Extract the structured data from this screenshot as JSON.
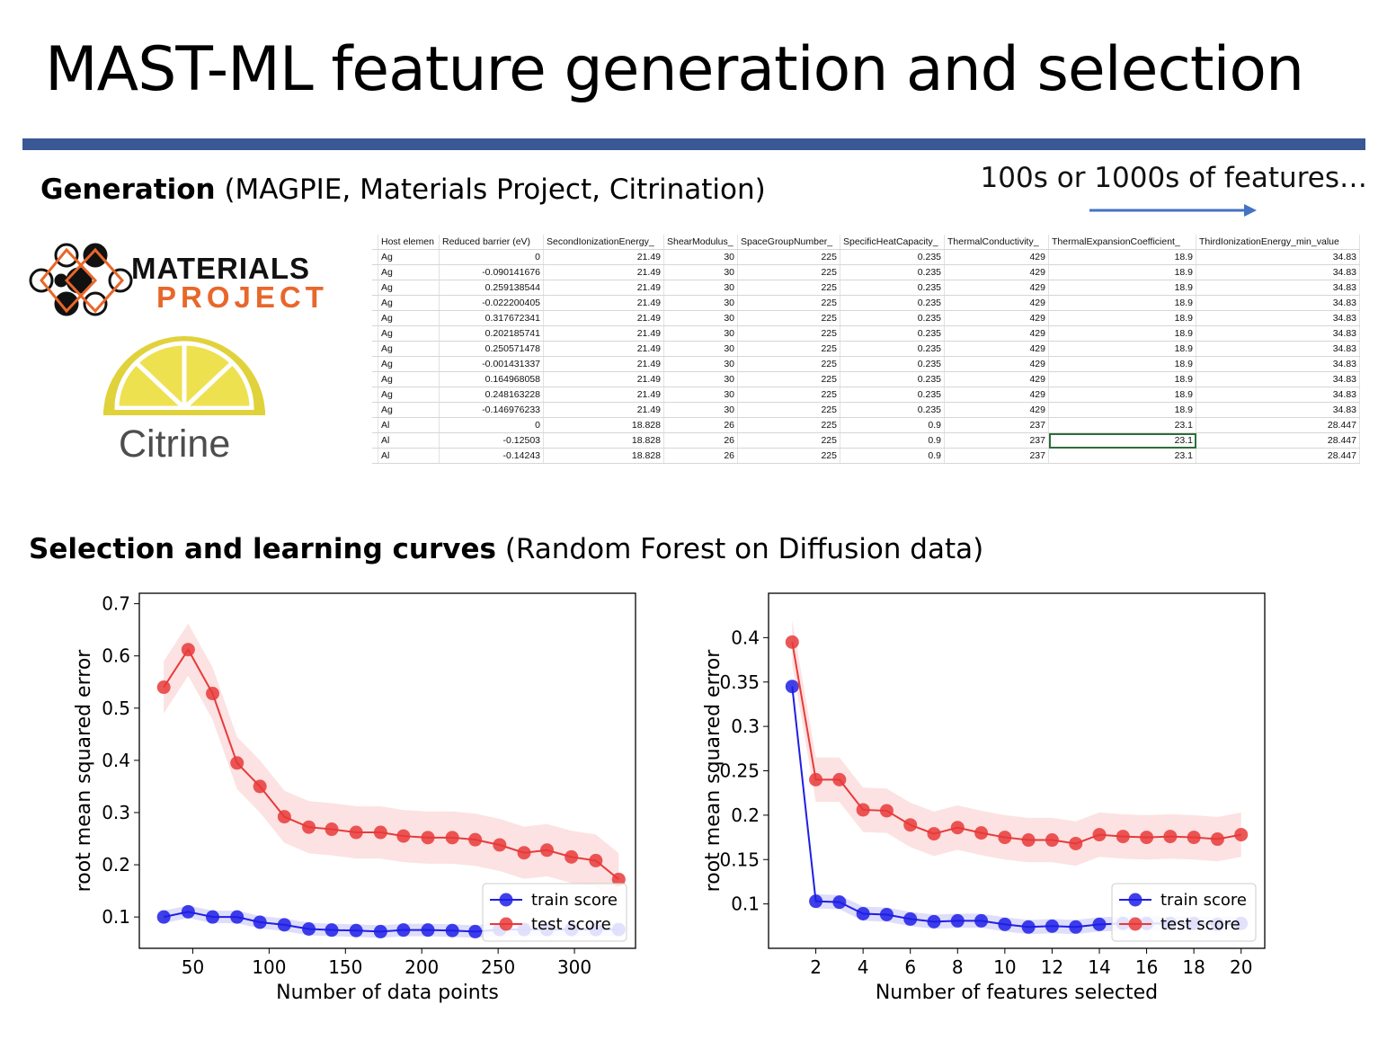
{
  "title": "MAST-ML feature generation and selection",
  "colors": {
    "rule": "#3a5796",
    "arrow": "#4472c4",
    "train": "#1f1fe6",
    "test": "#e83a3a",
    "mp_orange": "#e8672a",
    "citrine_yellow": "#e0d23b"
  },
  "generation": {
    "bold": "Generation",
    "rest": " (MAGPIE, Materials Project, Citrination)"
  },
  "features_note": "100s or 1000s of features…",
  "logos": {
    "materials": "MATERIALS",
    "project": "PROJECT",
    "citrine": "Citrine"
  },
  "spreadsheet": {
    "headers": [
      "Host elemen",
      "Reduced barrier (eV)",
      "SecondIonizationEnergy_",
      "ShearModulus_",
      "SpaceGroupNumber_",
      "SpecificHeatCapacity_",
      "ThermalConductivity_",
      "ThermalExpansionCoefficient_",
      "ThirdIonizationEnergy_min_value"
    ],
    "rows": [
      [
        "Ag",
        "0",
        "21.49",
        "30",
        "225",
        "0.235",
        "429",
        "18.9",
        "34.83"
      ],
      [
        "Ag",
        "-0.090141676",
        "21.49",
        "30",
        "225",
        "0.235",
        "429",
        "18.9",
        "34.83"
      ],
      [
        "Ag",
        "0.259138544",
        "21.49",
        "30",
        "225",
        "0.235",
        "429",
        "18.9",
        "34.83"
      ],
      [
        "Ag",
        "-0.022200405",
        "21.49",
        "30",
        "225",
        "0.235",
        "429",
        "18.9",
        "34.83"
      ],
      [
        "Ag",
        "0.317672341",
        "21.49",
        "30",
        "225",
        "0.235",
        "429",
        "18.9",
        "34.83"
      ],
      [
        "Ag",
        "0.202185741",
        "21.49",
        "30",
        "225",
        "0.235",
        "429",
        "18.9",
        "34.83"
      ],
      [
        "Ag",
        "0.250571478",
        "21.49",
        "30",
        "225",
        "0.235",
        "429",
        "18.9",
        "34.83"
      ],
      [
        "Ag",
        "-0.001431337",
        "21.49",
        "30",
        "225",
        "0.235",
        "429",
        "18.9",
        "34.83"
      ],
      [
        "Ag",
        "0.164968058",
        "21.49",
        "30",
        "225",
        "0.235",
        "429",
        "18.9",
        "34.83"
      ],
      [
        "Ag",
        "0.248163228",
        "21.49",
        "30",
        "225",
        "0.235",
        "429",
        "18.9",
        "34.83"
      ],
      [
        "Ag",
        "-0.146976233",
        "21.49",
        "30",
        "225",
        "0.235",
        "429",
        "18.9",
        "34.83"
      ],
      [
        "Al",
        "0",
        "18.828",
        "26",
        "225",
        "0.9",
        "237",
        "23.1",
        "28.447"
      ],
      [
        "Al",
        "-0.12503",
        "18.828",
        "26",
        "225",
        "0.9",
        "237",
        "23.1",
        "28.447"
      ],
      [
        "Al",
        "-0.14243",
        "18.828",
        "26",
        "225",
        "0.9",
        "237",
        "23.1",
        "28.447"
      ]
    ]
  },
  "selection": {
    "bold": "Selection and learning curves",
    "rest": " (Random Forest on Diffusion data)"
  },
  "chart_data": [
    {
      "type": "line",
      "xlabel": "Number of data points",
      "ylabel": "root mean squared error",
      "xlim": [
        15,
        340
      ],
      "ylim": [
        0.04,
        0.72
      ],
      "xticks": [
        50,
        100,
        150,
        200,
        250,
        300
      ],
      "yticks": [
        0.1,
        0.2,
        0.3,
        0.4,
        0.5,
        0.6,
        0.7
      ],
      "ytick_labels": [
        "0.1",
        "0.2",
        "0.3",
        "0.4",
        "0.5",
        "0.6",
        "0.7"
      ],
      "legend": "bottom-right",
      "x": [
        31,
        47,
        63,
        79,
        94,
        110,
        126,
        141,
        157,
        173,
        188,
        204,
        220,
        235,
        251,
        267,
        282,
        298,
        314,
        329
      ],
      "series": [
        {
          "name": "train score",
          "color": "#1f1fe6",
          "values": [
            0.1,
            0.11,
            0.1,
            0.1,
            0.09,
            0.085,
            0.077,
            0.075,
            0.074,
            0.072,
            0.075,
            0.075,
            0.074,
            0.072,
            0.076,
            0.076,
            0.076,
            0.076,
            0.076,
            0.076
          ],
          "band": 0.012
        },
        {
          "name": "test score",
          "color": "#e83a3a",
          "values": [
            0.54,
            0.612,
            0.528,
            0.395,
            0.35,
            0.292,
            0.272,
            0.268,
            0.262,
            0.262,
            0.255,
            0.252,
            0.252,
            0.248,
            0.238,
            0.223,
            0.228,
            0.215,
            0.208,
            0.172
          ],
          "band": 0.05
        }
      ]
    },
    {
      "type": "line",
      "xlabel": "Number of features selected",
      "ylabel": "root mean squared error",
      "xlim": [
        0,
        21
      ],
      "ylim": [
        0.05,
        0.45
      ],
      "xticks": [
        2,
        4,
        6,
        8,
        10,
        12,
        14,
        16,
        18,
        20
      ],
      "yticks": [
        0.1,
        0.15,
        0.2,
        0.25,
        0.3,
        0.35,
        0.4
      ],
      "ytick_labels": [
        "0.1",
        "0.15",
        "0.2",
        "0.25",
        "0.3",
        "0.35",
        "0.4"
      ],
      "legend": "bottom-right",
      "x": [
        1,
        2,
        3,
        4,
        5,
        6,
        7,
        8,
        9,
        10,
        11,
        12,
        13,
        14,
        15,
        16,
        17,
        18,
        19,
        20
      ],
      "series": [
        {
          "name": "train score",
          "color": "#1f1fe6",
          "values": [
            0.345,
            0.103,
            0.102,
            0.089,
            0.088,
            0.083,
            0.08,
            0.081,
            0.081,
            0.077,
            0.074,
            0.075,
            0.074,
            0.077,
            0.078,
            0.078,
            0.078,
            0.078,
            0.077,
            0.078
          ],
          "band": 0.008
        },
        {
          "name": "test score",
          "color": "#e83a3a",
          "values": [
            0.395,
            0.24,
            0.24,
            0.206,
            0.205,
            0.189,
            0.179,
            0.186,
            0.18,
            0.175,
            0.172,
            0.172,
            0.168,
            0.178,
            0.176,
            0.175,
            0.176,
            0.175,
            0.173,
            0.178
          ],
          "band": 0.025
        }
      ]
    }
  ]
}
